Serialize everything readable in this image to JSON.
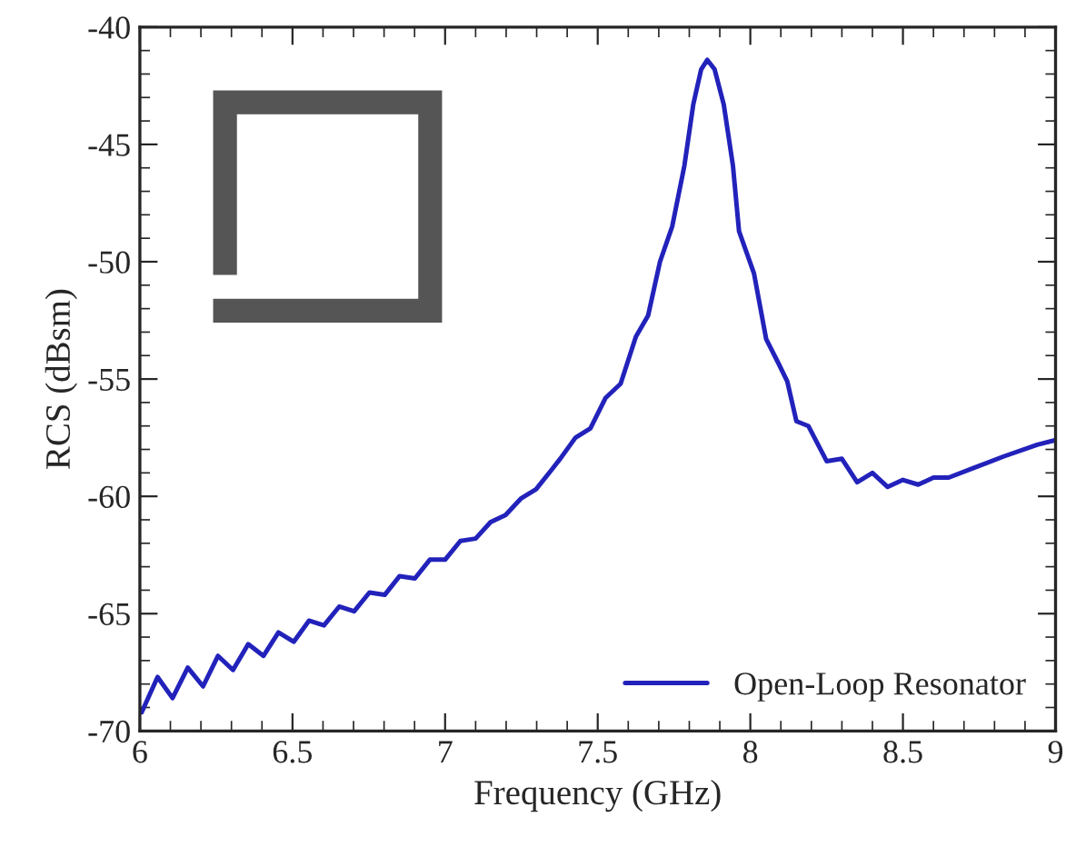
{
  "chart_data": {
    "type": "line",
    "xlabel": "Frequency (GHz)",
    "ylabel": "RCS (dBsm)",
    "xlim": [
      6,
      9
    ],
    "xticks": [
      6,
      6.5,
      7,
      7.5,
      8,
      8.5,
      9
    ],
    "ylim": [
      -70,
      -40
    ],
    "yticks": [
      -70,
      -65,
      -60,
      -55,
      -50,
      -45,
      -40
    ],
    "grid": false,
    "legend": "bottom right",
    "marker": "none",
    "line_style": "solid",
    "series": [
      {
        "name": "Open-Loop Resonator",
        "color": "#2222bb",
        "x": [
          6.006,
          6.058,
          6.107,
          6.157,
          6.207,
          6.256,
          6.305,
          6.355,
          6.405,
          6.454,
          6.504,
          6.554,
          6.603,
          6.653,
          6.702,
          6.752,
          6.802,
          6.851,
          6.901,
          6.95,
          7.0,
          7.05,
          7.1,
          7.149,
          7.198,
          7.248,
          7.298,
          7.347,
          7.377,
          7.427,
          7.476,
          7.526,
          7.575,
          7.625,
          7.665,
          7.704,
          7.744,
          7.784,
          7.813,
          7.839,
          7.859,
          7.883,
          7.913,
          7.943,
          7.963,
          8.012,
          8.052,
          8.091,
          8.121,
          8.151,
          8.19,
          8.25,
          8.3,
          8.35,
          8.4,
          8.45,
          8.5,
          8.55,
          8.6,
          8.65,
          8.73,
          8.83,
          8.94,
          9.0
        ],
        "values": [
          -69.2,
          -67.7,
          -68.6,
          -67.3,
          -68.1,
          -66.8,
          -67.4,
          -66.3,
          -66.8,
          -65.8,
          -66.2,
          -65.3,
          -65.5,
          -64.7,
          -64.9,
          -64.1,
          -64.2,
          -63.4,
          -63.5,
          -62.7,
          -62.7,
          -61.9,
          -61.8,
          -61.1,
          -60.8,
          -60.1,
          -59.7,
          -58.9,
          -58.4,
          -57.5,
          -57.1,
          -55.8,
          -55.2,
          -53.2,
          -52.3,
          -50.0,
          -48.5,
          -45.9,
          -43.3,
          -41.8,
          -41.4,
          -41.8,
          -43.3,
          -45.9,
          -48.7,
          -50.5,
          -53.3,
          -54.3,
          -55.1,
          -56.8,
          -57.0,
          -58.5,
          -58.4,
          -59.4,
          -59.0,
          -59.6,
          -59.3,
          -59.5,
          -59.2,
          -59.2,
          -58.8,
          -58.3,
          -57.8,
          -57.6
        ]
      }
    ]
  }
}
